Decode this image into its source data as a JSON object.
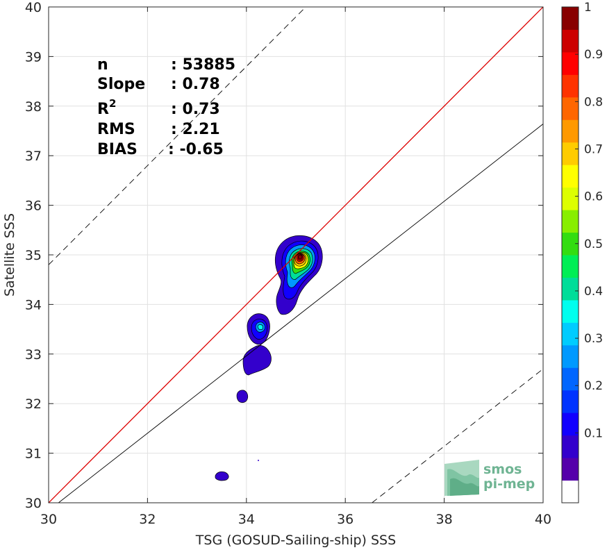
{
  "chart_data": {
    "type": "heatmap",
    "xlabel": "TSG (GOSUD-Sailing-ship) SSS",
    "ylabel": "Satellite SSS",
    "xlim": [
      30,
      40
    ],
    "ylim": [
      30,
      40
    ],
    "xticks": [
      "30",
      "32",
      "34",
      "36",
      "38",
      "40"
    ],
    "yticks": [
      "30",
      "31",
      "32",
      "33",
      "34",
      "35",
      "36",
      "37",
      "38",
      "39",
      "40"
    ],
    "grid": true,
    "colorbar": {
      "ticks": [
        "0.1",
        "0.2",
        "0.3",
        "0.4",
        "0.5",
        "0.6",
        "0.7",
        "0.8",
        "0.9",
        "1"
      ],
      "colors": [
        "#ffffff",
        "#5500aa",
        "#3300cc",
        "#1100ff",
        "#0033ff",
        "#0066ff",
        "#0099ff",
        "#00ccff",
        "#00ffee",
        "#00dd99",
        "#00ee55",
        "#33dd11",
        "#88ee00",
        "#ddff00",
        "#ffff00",
        "#ffcc00",
        "#ff9900",
        "#ff6600",
        "#ff3300",
        "#ff0000",
        "#cc0000",
        "#880000"
      ]
    },
    "lines": [
      {
        "type": "one-to-one",
        "color": "#dd0000",
        "points": [
          [
            30,
            30
          ],
          [
            40,
            40
          ]
        ]
      },
      {
        "type": "regression",
        "color": "#000000",
        "points": [
          [
            30.2,
            30
          ],
          [
            40,
            37.64
          ]
        ]
      },
      {
        "type": "upper-bound",
        "style": "dashed",
        "points": [
          [
            30,
            34.8
          ],
          [
            35.2,
            40
          ]
        ]
      },
      {
        "type": "lower-bound",
        "style": "dashed",
        "points": [
          [
            36.54,
            30
          ],
          [
            40,
            32.7
          ]
        ]
      }
    ],
    "density_blobs": [
      {
        "center": [
          35.1,
          34.95
        ],
        "peak": 1.0,
        "extent": [
          34.7,
          35.4,
          33.8,
          35.4
        ]
      },
      {
        "center": [
          34.25,
          33.5
        ],
        "peak": 0.35,
        "extent": [
          34.0,
          34.5,
          33.2,
          33.9
        ]
      },
      {
        "center": [
          34.25,
          32.85
        ],
        "peak": 0.12,
        "extent": [
          33.95,
          34.55,
          32.6,
          33.1
        ]
      },
      {
        "center": [
          33.95,
          32.15
        ],
        "peak": 0.12,
        "extent": [
          33.85,
          34.05,
          32.0,
          32.3
        ]
      },
      {
        "center": [
          33.5,
          30.55
        ],
        "peak": 0.12,
        "extent": [
          33.35,
          33.65,
          30.45,
          30.65
        ]
      }
    ]
  },
  "stats": [
    {
      "key": "n",
      "value": ": 53885"
    },
    {
      "key": "Slope",
      "value": ": 0.78"
    },
    {
      "key": "R",
      "sup": "2",
      "value": ": 0.73"
    },
    {
      "key": "RMS",
      "value": ": 2.21"
    },
    {
      "key": "BIAS",
      "value": ": -0.65"
    }
  ],
  "logo": {
    "line1": "smos",
    "line2": "pi-mep"
  }
}
